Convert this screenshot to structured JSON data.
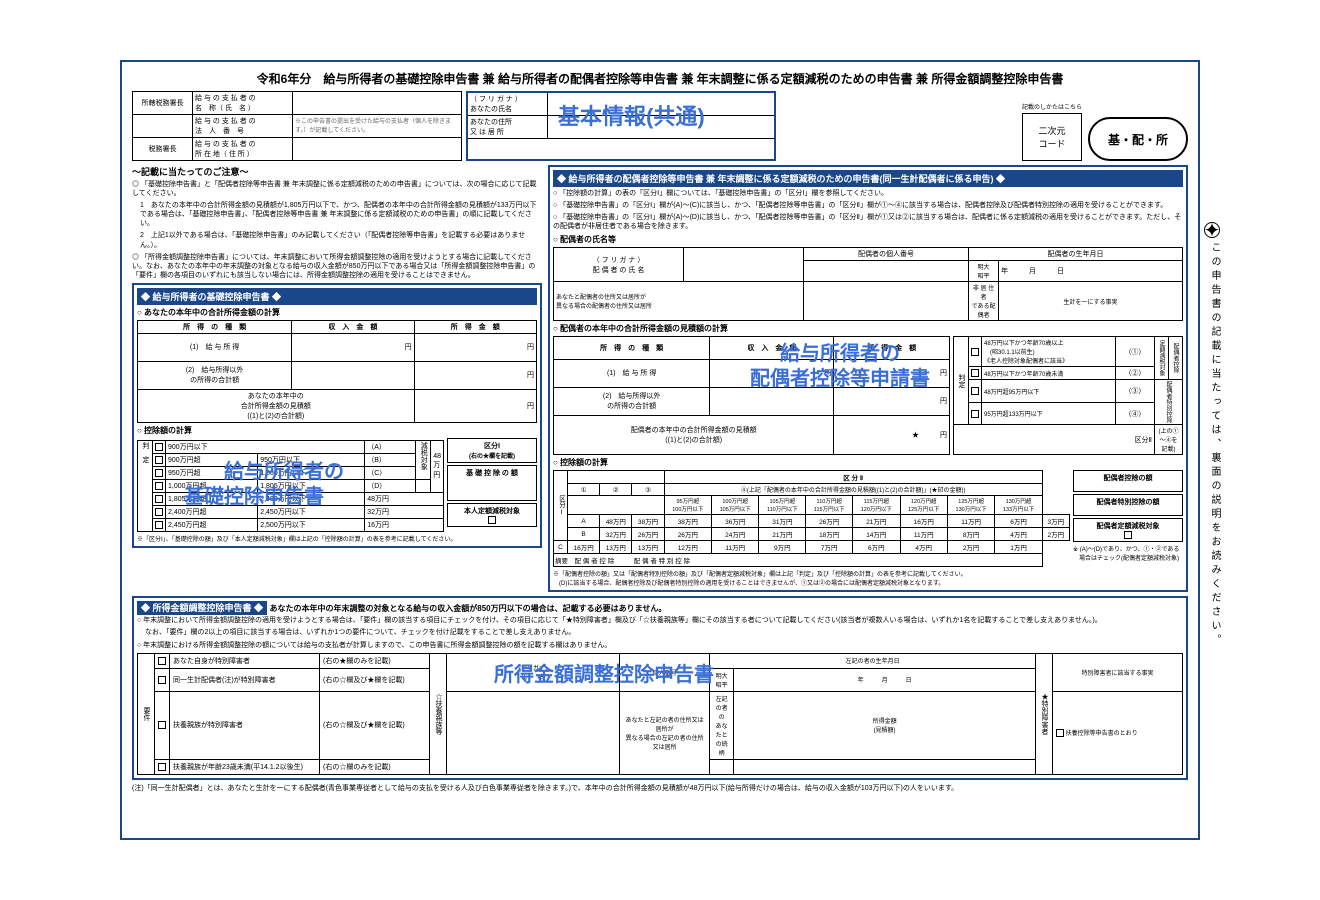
{
  "title": "令和6年分　給与所得者の基礎控除申告書 兼 給与所得者の配偶者控除等申告書 兼 年末調整に係る定額減税のための申告書 兼 所得金額調整控除申告書",
  "top_note": "記載のしかたはこちら",
  "qr_label": "二次元\nコード",
  "pill": "基・配・所",
  "payer": {
    "office_label": "所轄税務署長",
    "tax_label": "税務署長",
    "row1_label": "給 与 の 支 払 者 の\n名　称（ 氏　名 ）",
    "row2_label": "給 与 の 支 払 者 の\n法　人　番　号",
    "row2_note": "※この申告書の提出を受けた給与の支払者（個人を除きます。）が記載してください。",
    "row3_label": "給 与 の 支 払 者 の\n所 在 地（ 住 所 ）"
  },
  "basic_info": {
    "row1": "（ フ リ ガ ナ ）\nあなたの氏名",
    "row2": "あなたの住所\n又 は 居 所",
    "overlay": "基本情報(共通)"
  },
  "left_notice": {
    "title": "～記載に当たってのご注意～",
    "b1": "◎ 「基礎控除申告書」と「配偶者控除等申告書 兼 年末調整に係る定額減税のための申告書」については、次の場合に応じて記載してください。",
    "b2": "1　あなたの本年中の合計所得金額の見積額が1,805万円以下で、かつ、配偶者の本年中の合計所得金額の見積額が133万円以下である場合は、「基礎控除申告書」、「配偶者控除等申告書 兼 年末調整に係る定額減税のための申告書」の順に記載してください。",
    "b3": "2　上記1以外である場合は、「基礎控除申告書」のみ記載してください（「配偶者控除等申告書」を記載する必要はありません。）。",
    "b4": "◎ 「所得金額調整控除申告書」については、年末調整において所得金額調整控除の適用を受けようとする場合に記載してください。なお、あなたの本年中の年末調整の対象となる給与の収入金額が850万円以下である場合又は「所得金額調整控除申告書」の「要件」欄の各項目のいずれにも該当しない場合には、所得金額調整控除の適用を受けることはできません。"
  },
  "kiso": {
    "bar": "◆ 給与所得者の基礎控除申告書 ◆",
    "sub1": "○ あなたの本年中の合計所得金額の計算",
    "th1": "所　得　の　種　類",
    "th2": "収　入　金　額",
    "th3": "所　得　金　額",
    "r1": "給 与 所 得",
    "r2": "給与所得以外\nの所得の合計額",
    "total": "あなたの本年中の\n合計所得金額の見積額\n((1)と(2)の合計額)",
    "sub2": "○ 控除額の計算",
    "overlay1": "給与所得者の",
    "overlay2": "基礎控除申告書",
    "rows": [
      [
        "900万円以下",
        "（A）",
        "48"
      ],
      [
        "900万円超",
        "950万円以下",
        "（B）",
        "万円"
      ],
      [
        "950万円超",
        "1,000万円以下",
        "（C）",
        ""
      ],
      [
        "1,000万円超",
        "1,805万円以下",
        "（D）",
        ""
      ],
      [
        "1,805万円超",
        "2,400万円以下",
        "",
        "48万円"
      ],
      [
        "2,400万円超",
        "2,450万円以下",
        "",
        "32万円"
      ],
      [
        "2,450万円超",
        "2,500万円以下",
        "",
        "16万円"
      ]
    ],
    "kubun": "区分Ⅰ",
    "side_note": "(右の★欄を記載)",
    "side_label": "減税対象",
    "result1": "基 礎 控 除 の 額",
    "result2": "本人定額減税対象",
    "foot": "※「区分Ⅰ」、「基礎控除の額」及び「本人定額減税対象」欄は上記の「控除額の計算」の表を参考に記載してください。"
  },
  "spouse": {
    "bar": "◆ 給与所得者の配偶者控除等申告書 兼 年末調整に係る定額減税のための申告書(同一生計配偶者に係る申告) ◆",
    "n1": "○ 「控除額の計算」の表の「区分Ⅰ」欄については、「基礎控除申告書」の「区分Ⅰ」欄を参照してください。",
    "n2": "○ 「基礎控除申告書」の「区分Ⅰ」欄が(A)～(C)に該当し、かつ、「配偶者控除等申告書」の「区分Ⅱ」欄が①～④に該当する場合は、配偶者控除及び配偶者特別控除の適用を受けることができます。",
    "n3": "○ 「基礎控除申告書」の「区分Ⅰ」欄が(A)～(D)に該当し、かつ、「配偶者控除等申告書」の「区分Ⅱ」欄が①又は②に該当する場合は、配偶者に係る定額減税の適用を受けることができます。ただし、その配偶者が非居住者である場合を除きます。",
    "name_title": "○ 配偶者の氏名等",
    "furigana": "（ フ リ ガ ナ ）\n配 偶 者 の 氏 名",
    "mynumber": "配偶者の個人番号",
    "birth": "配偶者の生年月日",
    "era": "明大\n昭平",
    "ymd": "年　　　月　　　日",
    "addr": "あなたと配偶者の住所又は居所が\n異なる場合の配偶者の住所又は居所",
    "nonres": "非 居 住 者\nである配偶者",
    "same": "生計を一にする事実",
    "sub1": "○ 配偶者の本年中の合計所得金額の見積額の計算",
    "total": "配偶者の本年中の合計所得金額の見積額\n((1)と(2)の合計額)",
    "kubun2": "区分Ⅱ",
    "overlay1": "給与所得者の",
    "overlay2": "配偶者控除等申請書",
    "opts": [
      "48万円以下かつ年齢70歳以上\n　(昭30.1.1以前生)\n《老人控除対象配偶者に該当》",
      "48万円以下かつ年齢70歳未満",
      "48万円超95万円以下",
      "95万円超133万円以下"
    ],
    "opt_marks": [
      "（①）",
      "（②）",
      "（③）",
      "（④）"
    ],
    "opt_side": [
      "定額減税対象",
      "配偶者控除",
      "配偶者特別控除"
    ],
    "side_note2": "(上の①～④を記載)",
    "sub2": "○ 控除額の計算",
    "grid_header_note": "④(上記「配偶者の本年中の合計所得金額の見積額((1)と(2)の合計額)」(★印の金額))",
    "col_ranges": [
      "95万円超\n100万円以下",
      "100万円超\n105万円以下",
      "105万円超\n110万円以下",
      "110万円超\n115万円以下",
      "115万円超\n120万円以下",
      "120万円超\n125万円以下",
      "125万円超\n130万円以下",
      "130万円超\n133万円以下"
    ],
    "grid": [
      [
        "A",
        "48万円",
        "38万円",
        "38万円",
        "36万円",
        "31万円",
        "26万円",
        "21万円",
        "16万円",
        "11万円",
        "6万円",
        "3万円"
      ],
      [
        "B",
        "32万円",
        "26万円",
        "26万円",
        "24万円",
        "21万円",
        "18万円",
        "14万円",
        "11万円",
        "8万円",
        "4万円",
        "2万円"
      ],
      [
        "C",
        "16万円",
        "13万円",
        "13万円",
        "12万円",
        "11万円",
        "9万円",
        "7万円",
        "6万円",
        "4万円",
        "2万円",
        "1万円"
      ]
    ],
    "tekiyo": "摘要　配 偶 者 控 除　　　配 偶 者 特 別 控 除",
    "res1": "配偶者控除の額",
    "res2": "配偶者特別控除の額",
    "res3": "配偶者定額減税対象",
    "foot": "※「配偶者控除の額」又は「配偶者特別控除の額」及び「配偶者定額減税対象」欄は上記「判定」及び「控除額の計算」の表を参考に記載してください。\n　(D)に該当する場合、配偶者控除及び配偶者特別控除の適用を受けることはできませんが、①又は②の場合には配偶者定額減税対象となります。",
    "foot2": "※ (A)～(D)であり、かつ、①・②である\n　場合はチェック(配偶者定額減税対象)"
  },
  "adjust": {
    "bar": "◆ 所得金額調整控除申告書 ◆",
    "bar_text": "あなたの本年中の年末調整の対象となる給与の収入金額が850万円以下の場合は、記載する必要はありません。",
    "n1": "○ 年末調整において所得金額調整控除の適用を受けようとする場合は、「要件」欄の該当する項目にチェックを付け、その項目に応じて「★特別障害者」欄及び「☆扶養親族等」欄にその該当する者について記載してください(該当者が複数人いる場合は、いずれか1名を記載することで差し支えありません。)。",
    "n2": "なお、「要件」欄の2以上の項目に該当する場合は、いずれか1つの要件について、チェックを付け記載をすることで差し支えありません。",
    "n3": "○ 年末調整における所得金額調整控除の額については給与の支払者が計算しますので、この申告書に所得金額調整控除の額を記載する欄はありません。",
    "overlay": "所得金額調整控除申告書",
    "req_label": "要件",
    "reqs": [
      "あなた自身が特別障害者",
      "(右の★欄のみを記載)",
      "同一生計配偶者(注)が特別障害者",
      "(右の☆欄及び★欄を記載)",
      "扶養親族が特別障害者",
      "(右の☆欄及び★欄を記載)",
      "扶養親族が年齢23歳未満(平14.1.2以後生)",
      "(右の☆欄のみを記載)"
    ],
    "dep_label": "☆扶養親族等",
    "dep_cols": [
      "(フリガナ)\n氏　　名",
      "個人番号",
      "左記の者の生年月日",
      "左記の者の住所又は居所",
      "あなたと左記の者の住所又は居所が\n異なる場合の左記の者の住所又は居所",
      "左記の者の\nあなたとの続柄",
      "所得金額\n(見積額)"
    ],
    "star_label": "★特別障害者",
    "star_col": "特別障害者に該当する事実",
    "star_check": "扶養控除等申告書のとおり"
  },
  "bottom_note": "(注)「同一生計配偶者」とは、あなたと生計を一にする配偶者(青色事業専従者として給与の支払を受ける人及び白色事業専従者を除きます。)で、本年中の合計所得金額の見積額が48万円以下(給与所得だけの場合は、給与の収入金額が103万円以下)の人をいいます。",
  "side_text": "この申告書の記載に当たっては、裏面の説明をお読みください。"
}
